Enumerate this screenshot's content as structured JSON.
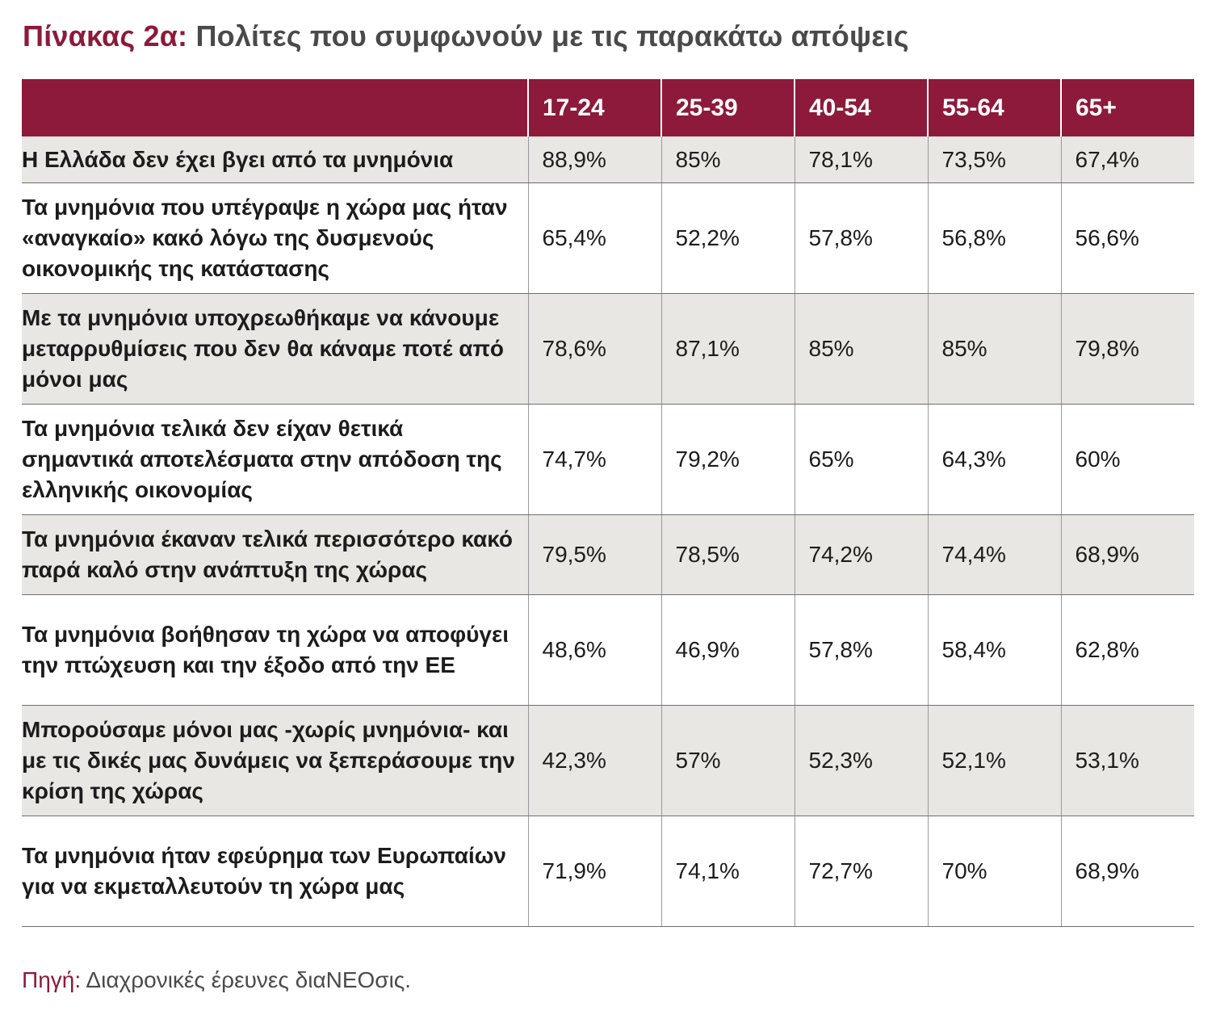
{
  "title": {
    "label": "Πίνακας 2α:",
    "text": "Πολίτες που συμφωνούν με τις παρακάτω απόψεις"
  },
  "table": {
    "columns": [
      "",
      "17-24",
      "25-39",
      "40-54",
      "55-64",
      "65+"
    ],
    "rows": [
      {
        "statement": "Η Ελλάδα δεν έχει βγει από τα μνημόνια",
        "values": [
          "88,9%",
          "85%",
          "78,1%",
          "73,5%",
          "67,4%"
        ]
      },
      {
        "statement": "Τα μνημόνια που υπέγραψε η χώρα μας ήταν «αναγκαίο» κακό λόγω της δυσμενούς οικονομικής της κατάστασης",
        "values": [
          "65,4%",
          "52,2%",
          "57,8%",
          "56,8%",
          "56,6%"
        ]
      },
      {
        "statement": "Με τα μνημόνια υποχρεωθήκαμε να κάνουμε μεταρρυθμίσεις που δεν θα κάναμε ποτέ από μόνοι μας",
        "values": [
          "78,6%",
          "87,1%",
          "85%",
          "85%",
          "79,8%"
        ]
      },
      {
        "statement": "Τα μνημόνια τελικά δεν είχαν θετικά σημαντικά αποτελέσματα στην απόδοση της ελληνικής οικονομίας",
        "values": [
          "74,7%",
          "79,2%",
          "65%",
          "64,3%",
          "60%"
        ]
      },
      {
        "statement": "Τα μνημόνια έκαναν τελικά περισσότερο κακό παρά καλό στην ανάπτυξη της χώρας",
        "values": [
          "79,5%",
          "78,5%",
          "74,2%",
          "74,4%",
          "68,9%"
        ]
      },
      {
        "statement": "Τα μνημόνια βοήθησαν τη χώρα να αποφύγει την πτώχευση και την έξοδο από την ΕΕ",
        "values": [
          "48,6%",
          "46,9%",
          "57,8%",
          "58,4%",
          "62,8%"
        ]
      },
      {
        "statement": "Μπορούσαμε μόνοι μας -χωρίς μνημόνια- και με τις δικές μας δυνάμεις να ξεπεράσουμε την κρίση της χώρας",
        "values": [
          "42,3%",
          "57%",
          "52,3%",
          "52,1%",
          "53,1%"
        ]
      },
      {
        "statement": "Τα μνημόνια ήταν εφεύρημα των Ευρωπαίων για να εκμεταλλευτούν τη χώρα μας",
        "values": [
          "71,9%",
          "74,1%",
          "72,7%",
          "70%",
          "68,9%"
        ]
      }
    ]
  },
  "source": {
    "label": "Πηγή:",
    "text": "Διαχρονικές έρευνες διαΝΕΟσις."
  },
  "colors": {
    "accent": "#8d1a3a",
    "row_shade": "#e9e7e3"
  }
}
